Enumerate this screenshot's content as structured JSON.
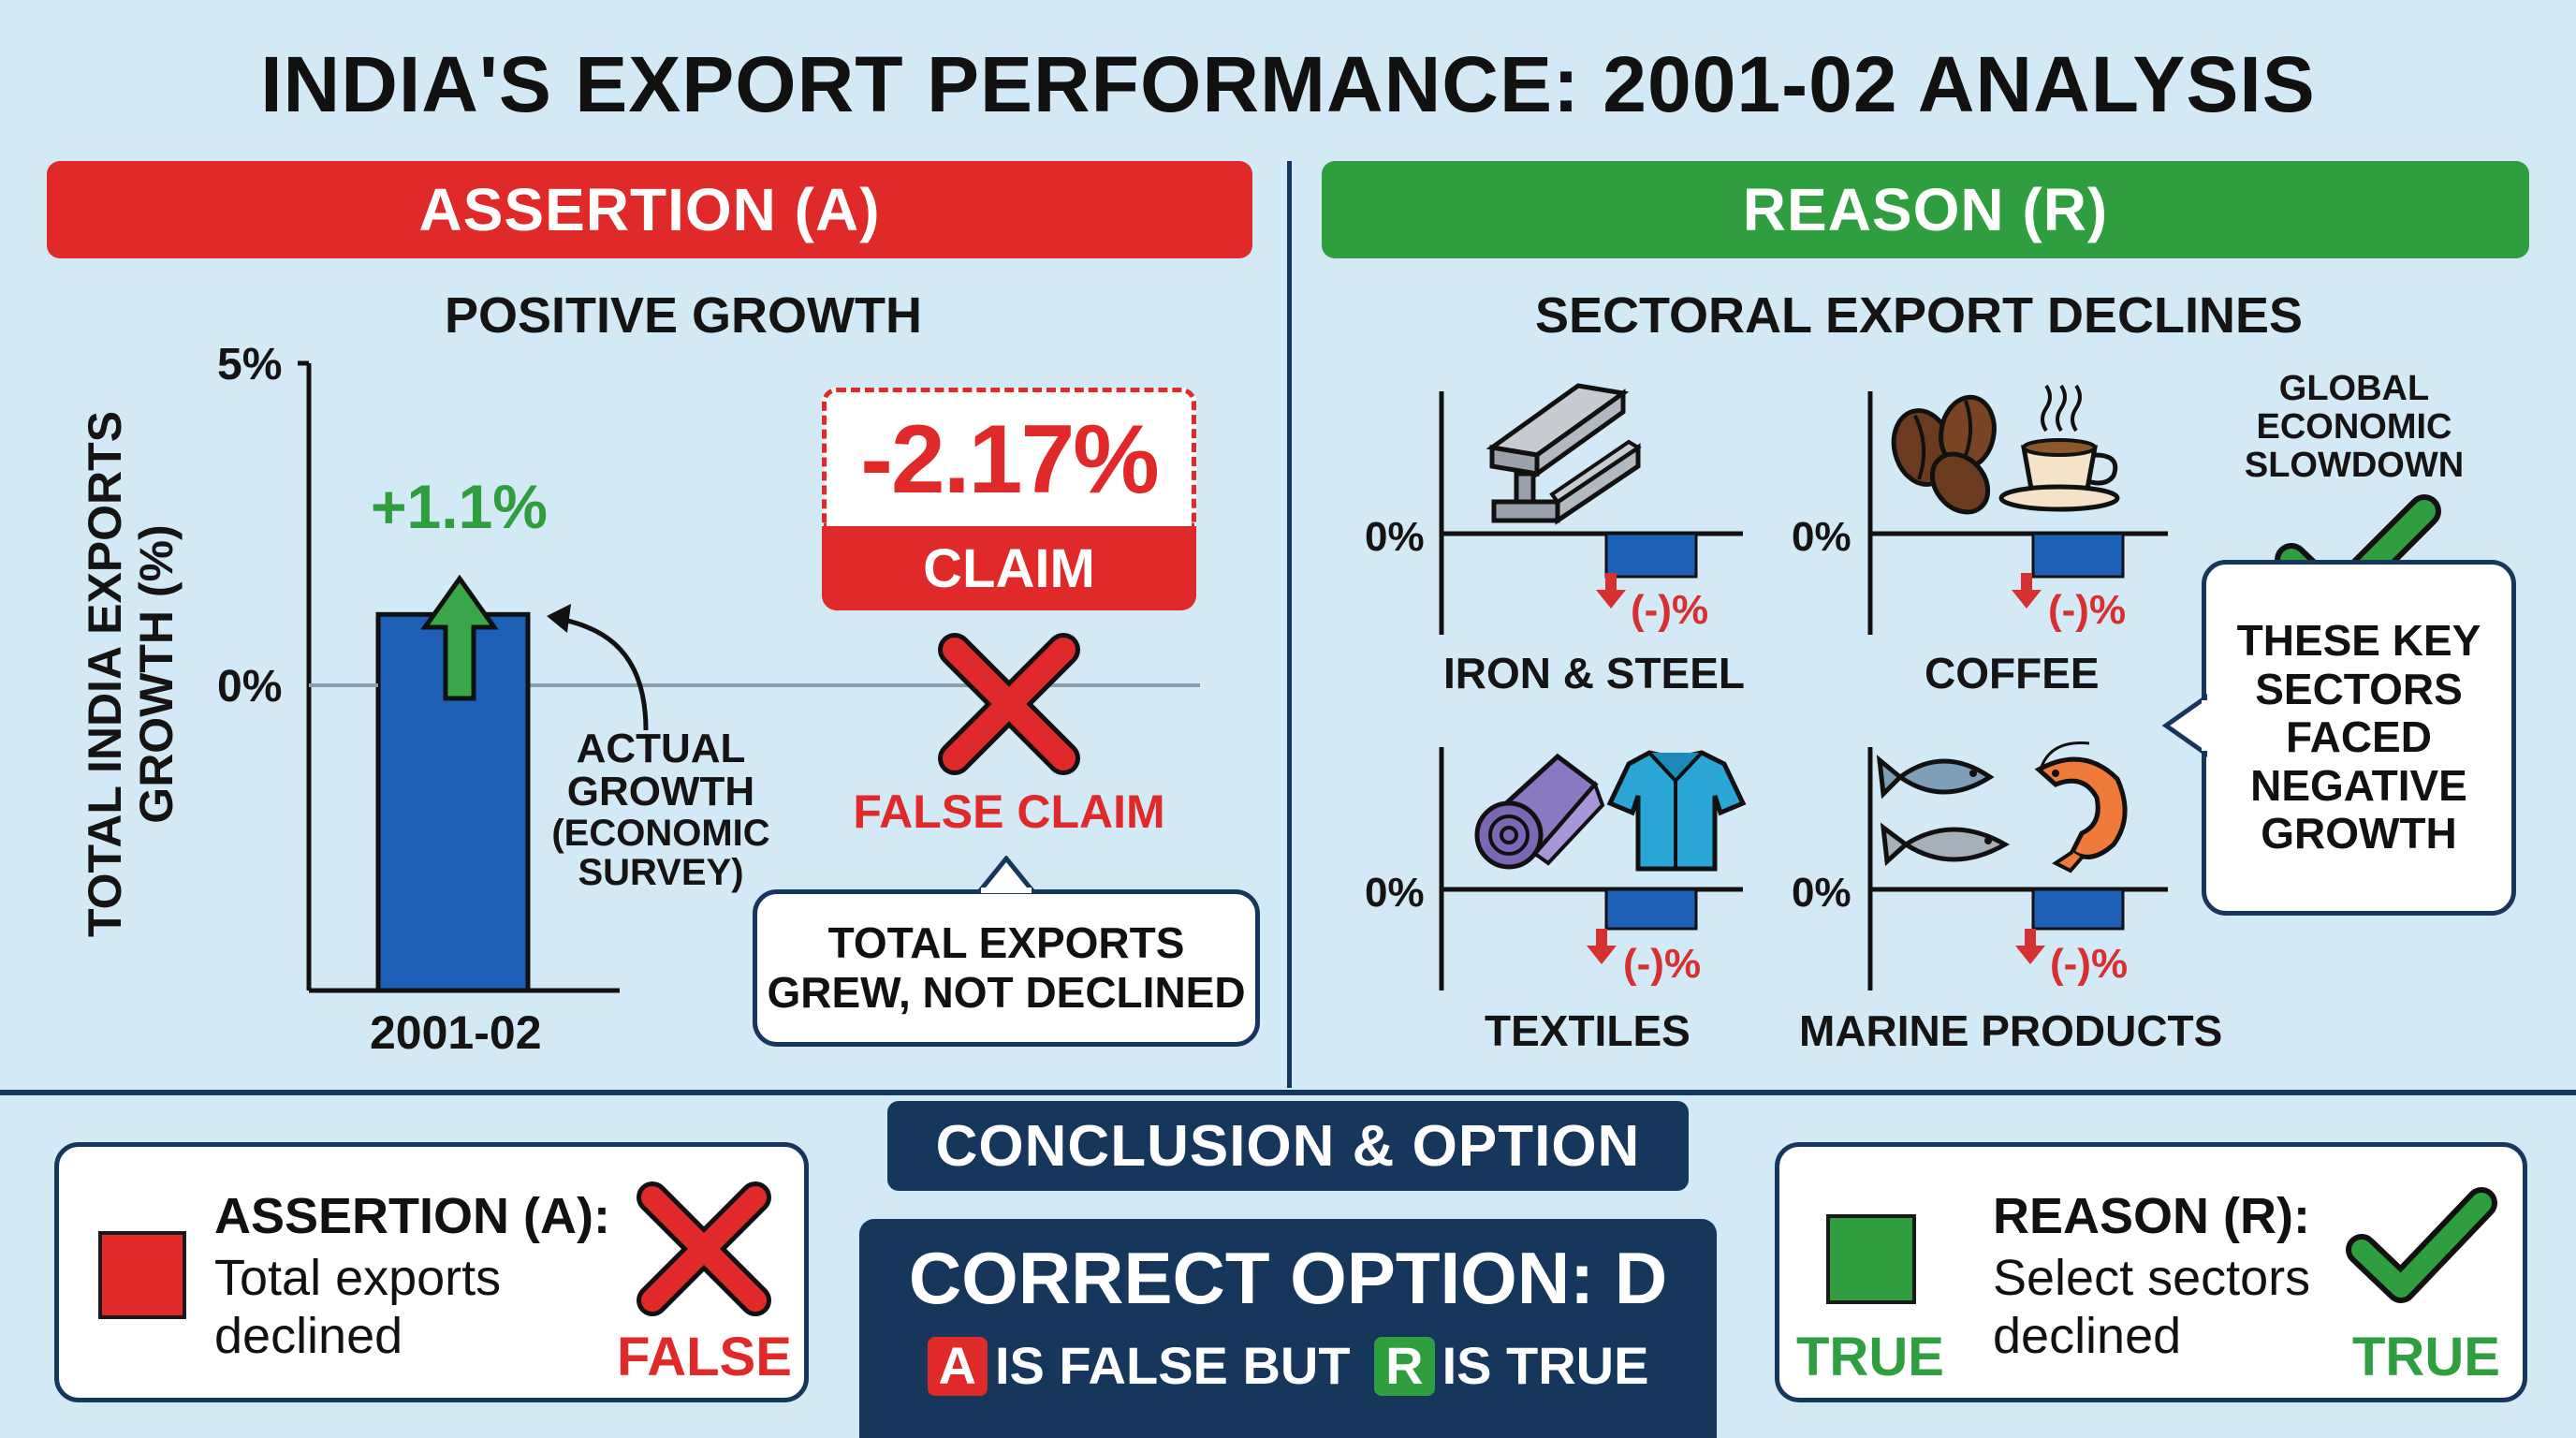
{
  "title": "INDIA'S EXPORT PERFORMANCE: 2001-02 ANALYSIS",
  "assertion": {
    "banner": "ASSERTION (A)",
    "subtitle": "POSITIVE GROWTH",
    "claim_value": "-2.17%",
    "claim_label": "CLAIM",
    "false_claim_label": "FALSE CLAIM",
    "note_line1": "TOTAL EXPORTS",
    "note_line2": "GREW, NOT DECLINED",
    "actual_note": [
      "ACTUAL",
      "GROWTH",
      "(ECONOMIC",
      "SURVEY)"
    ]
  },
  "chart_data": {
    "type": "bar",
    "categories": [
      "2001-02"
    ],
    "values": [
      1.1
    ],
    "data_labels": [
      "+1.1%"
    ],
    "ylabel": "TOTAL INDIA EXPORTS GROWTH (%)",
    "ytick_labels": [
      "5%",
      "0%"
    ],
    "colors": {
      "bar": "#1e5fb8",
      "label": "#2e9e3e"
    }
  },
  "reason": {
    "banner": "REASON (R)",
    "subtitle": "SECTORAL EXPORT DECLINES",
    "zero_label": "0%",
    "decline_label": "(-)%",
    "sectors": [
      {
        "name": "IRON & STEEL",
        "icon": "steel-beam-icon"
      },
      {
        "name": "COFFEE",
        "icon": "coffee-icon"
      },
      {
        "name": "TEXTILES",
        "icon": "textiles-icon"
      },
      {
        "name": "MARINE PRODUCTS",
        "icon": "marine-products-icon"
      }
    ],
    "global_slowdown": [
      "GLOBAL",
      "ECONOMIC",
      "SLOWDOWN"
    ],
    "callout": [
      "THESE KEY",
      "SECTORS",
      "FACED",
      "NEGATIVE",
      "GROWTH"
    ]
  },
  "conclusion": {
    "heading": "CONCLUSION & OPTION",
    "correct_option": "CORRECT OPTION: D",
    "tag_a": "A",
    "text_a": "IS FALSE BUT",
    "tag_r": "R",
    "text_r": "IS TRUE",
    "assertion_card": {
      "title": "ASSERTION (A):",
      "line1": "Total exports",
      "line2": "declined",
      "verdict": "FALSE"
    },
    "reason_card": {
      "title": "REASON (R):",
      "line1": "Select sectors",
      "line2": "declined",
      "verdict_left": "TRUE",
      "verdict_right": "TRUE"
    }
  },
  "colors": {
    "red": "#e02a2a",
    "green": "#2e9e3e",
    "navy": "#16365c",
    "blue": "#1e5fb8",
    "background": "#d3e9f6"
  }
}
